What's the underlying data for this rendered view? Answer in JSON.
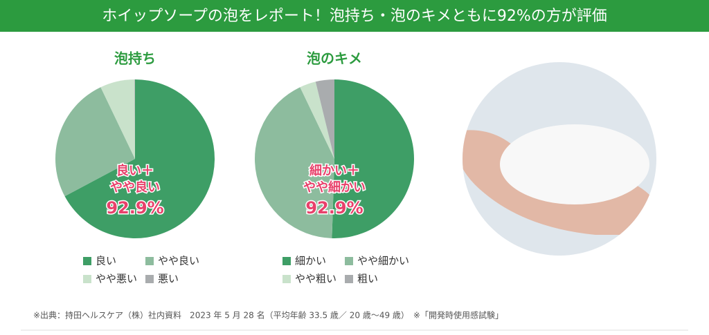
{
  "header": {
    "title": "ホイップソープの泡をレポート！泡持ち・泡のキメともに92%の方が評価"
  },
  "footnote": "※出典：持田ヘルスケア（株）社内資料　2023 年 5 月 28 名（平均年齢 33.5 歳／ 20 歳〜49 歳）　※「開発時使用感試験」",
  "chart_data": [
    {
      "type": "pie",
      "title": "泡持ち",
      "annotation": [
        "良い＋",
        "やや良い",
        "92.9%"
      ],
      "series": [
        {
          "name": "良い",
          "color": "#3e9e66",
          "values": [
            67.2
          ]
        },
        {
          "name": "やや良い",
          "color": "#8dbc9e",
          "values": [
            25.7
          ]
        },
        {
          "name": "やや悪い",
          "color": "#c9e2cb",
          "values": [
            7.0
          ]
        },
        {
          "name": "悪い",
          "color": "#a9acae",
          "values": [
            0.1
          ]
        }
      ]
    },
    {
      "type": "pie",
      "title": "泡のキメ",
      "annotation": [
        "細かい＋",
        "やや細かい",
        "92.9%"
      ],
      "series": [
        {
          "name": "細かい",
          "color": "#3e9e66",
          "values": [
            50.5
          ]
        },
        {
          "name": "やや細かい",
          "color": "#8dbc9e",
          "values": [
            42.4
          ]
        },
        {
          "name": "やや粗い",
          "color": "#c9e2cb",
          "values": [
            3.3
          ]
        },
        {
          "name": "粗い",
          "color": "#a9acae",
          "values": [
            3.8
          ]
        }
      ]
    }
  ]
}
